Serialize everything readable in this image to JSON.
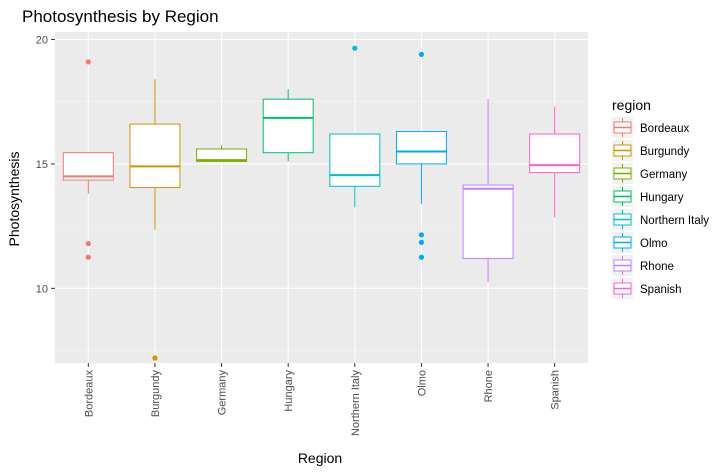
{
  "chart_data": {
    "type": "boxplot",
    "title": "Photosynthesis by Region",
    "xlabel": "Region",
    "ylabel": "Photosynthesis",
    "ylim": [
      7.0,
      20.3
    ],
    "yticks": [
      10,
      15,
      20
    ],
    "grid": true,
    "legend_title": "region",
    "legend_position": "right",
    "categories": [
      "Bordeaux",
      "Burgundy",
      "Germany",
      "Hungary",
      "Northern Italy",
      "Olmo",
      "Rhone",
      "Spanish"
    ],
    "series": [
      {
        "name": "Bordeaux",
        "color": "#F8766D",
        "whisker_low": 13.8,
        "q1": 14.35,
        "median": 14.5,
        "q3": 15.45,
        "whisker_high": 15.45,
        "outliers": [
          19.1,
          11.8,
          11.25
        ]
      },
      {
        "name": "Burgundy",
        "color": "#CD9600",
        "whisker_low": 12.35,
        "q1": 14.05,
        "median": 14.9,
        "q3": 16.6,
        "whisker_high": 18.4,
        "outliers": [
          7.2
        ]
      },
      {
        "name": "Germany",
        "color": "#7CAE00",
        "whisker_low": 15.1,
        "q1": 15.1,
        "median": 15.15,
        "q3": 15.6,
        "whisker_high": 15.75,
        "outliers": []
      },
      {
        "name": "Hungary",
        "color": "#00BE67",
        "whisker_low": 15.1,
        "q1": 15.45,
        "median": 16.85,
        "q3": 17.6,
        "whisker_high": 18.0,
        "outliers": []
      },
      {
        "name": "Northern Italy",
        "color": "#00BFC4",
        "whisker_low": 13.25,
        "q1": 14.1,
        "median": 14.55,
        "q3": 16.2,
        "whisker_high": 16.2,
        "outliers": [
          19.65
        ]
      },
      {
        "name": "Olmo",
        "color": "#00A9FF",
        "whisker_low": 13.4,
        "q1": 15.0,
        "median": 15.5,
        "q3": 16.3,
        "whisker_high": 16.3,
        "outliers": [
          19.4,
          12.15,
          11.85,
          11.25
        ]
      },
      {
        "name": "Rhone",
        "color": "#C77CFF",
        "whisker_low": 10.25,
        "q1": 11.2,
        "median": 14.0,
        "q3": 14.15,
        "whisker_high": 17.6,
        "outliers": []
      },
      {
        "name": "Spanish",
        "color": "#FF61CC",
        "whisker_low": 12.85,
        "q1": 14.65,
        "median": 14.95,
        "q3": 16.2,
        "whisker_high": 17.3,
        "outliers": []
      }
    ]
  }
}
